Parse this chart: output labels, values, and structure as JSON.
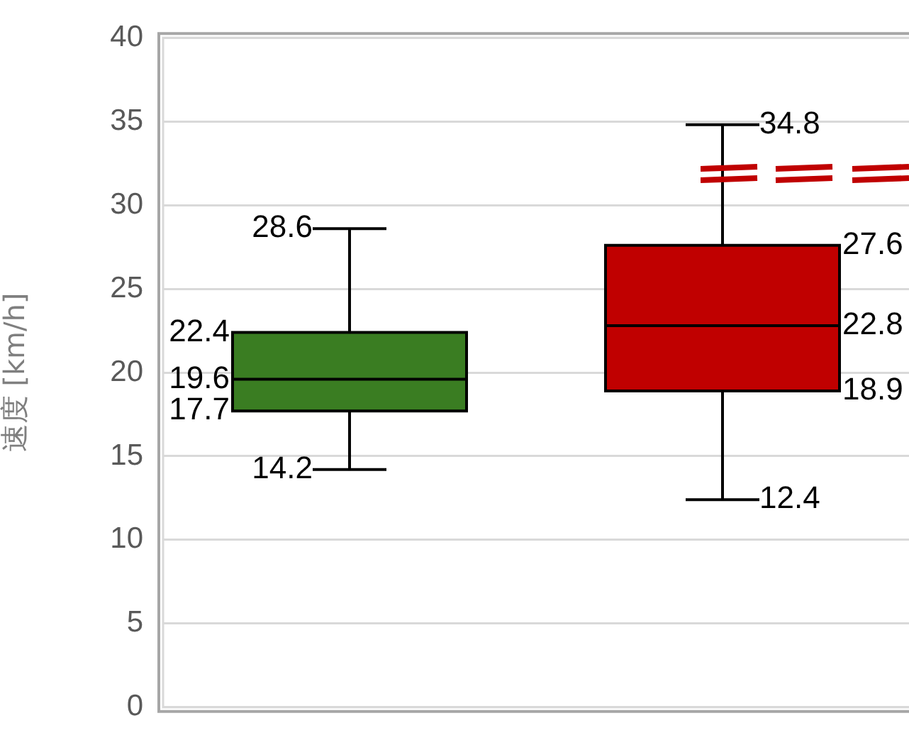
{
  "chart_data": {
    "type": "box",
    "ylabel": "速度 [km/h]",
    "categories": [
      null,
      null
    ],
    "boxes": [
      {
        "low": 14.2,
        "q1": 17.7,
        "median": 19.6,
        "q3": 22.4,
        "high": 28.6
      },
      {
        "low": 12.4,
        "q1": 18.9,
        "median": 22.8,
        "q3": 27.6,
        "high": 34.8
      }
    ],
    "colors": [
      "#3a7d22",
      "#c00000"
    ],
    "annotations": [
      "28.6",
      "22.4",
      "19.6",
      "17.7",
      "14.2",
      "34.8",
      "27.6",
      "22.8",
      "18.9",
      "12.4"
    ],
    "ylim": [
      0,
      40
    ],
    "yticks": [
      0,
      5,
      10,
      15,
      20,
      25,
      30,
      35,
      40
    ],
    "grid": "y",
    "tick_labels": "y"
  }
}
